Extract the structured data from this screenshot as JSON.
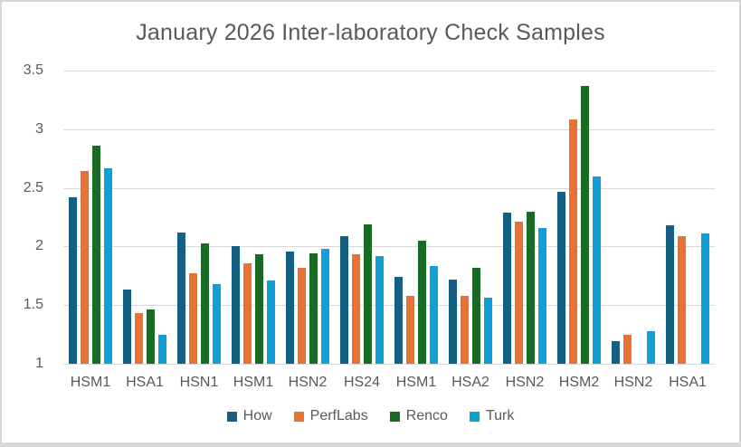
{
  "window": {
    "background": "#FFFFFF",
    "border_color": "#D6D4D4",
    "bottom_strip_color": "#D3D9DD"
  },
  "chart_data": {
    "type": "bar",
    "title": "January 2026 Inter-laboratory Check Samples",
    "title_color": "#595959",
    "categories": [
      "HSM1",
      "HSA1",
      "HSN1",
      "HSM1",
      "HSN2",
      "HS24",
      "HSM1",
      "HSA2",
      "HSN2",
      "HSM2",
      "HSN2",
      "HSA1"
    ],
    "series": [
      {
        "name": "How",
        "color": "#156082",
        "values": [
          2.42,
          1.63,
          2.12,
          2.0,
          1.96,
          2.09,
          1.74,
          1.72,
          2.29,
          2.47,
          1.19,
          2.18
        ]
      },
      {
        "name": "PerfLabs",
        "color": "#E97132",
        "values": [
          2.64,
          1.43,
          1.77,
          1.86,
          1.82,
          1.93,
          1.58,
          1.58,
          2.21,
          3.08,
          1.25,
          2.09
        ]
      },
      {
        "name": "Renco",
        "color": "#196B24",
        "values": [
          2.86,
          1.46,
          2.03,
          1.93,
          1.94,
          2.19,
          2.05,
          1.82,
          2.3,
          3.37,
          null,
          null
        ]
      },
      {
        "name": "Turk",
        "color": "#0F9ED5",
        "values": [
          2.67,
          1.25,
          1.68,
          1.71,
          1.98,
          1.92,
          1.83,
          1.56,
          2.16,
          2.6,
          1.28,
          2.11
        ]
      }
    ],
    "y_axis": {
      "min": 1,
      "max": 3.5,
      "step": 0.5,
      "tick_labels": [
        "3.5",
        "3",
        "2.5",
        "2",
        "1.5",
        "1"
      ]
    },
    "xlabel": "",
    "ylabel": "",
    "grid": true,
    "gridline_color": "#D9D9D9",
    "axis_text_color": "#595959",
    "legend": {
      "position": "bottom",
      "entries": [
        "How",
        "PerfLabs",
        "Renco",
        "Turk"
      ]
    }
  }
}
